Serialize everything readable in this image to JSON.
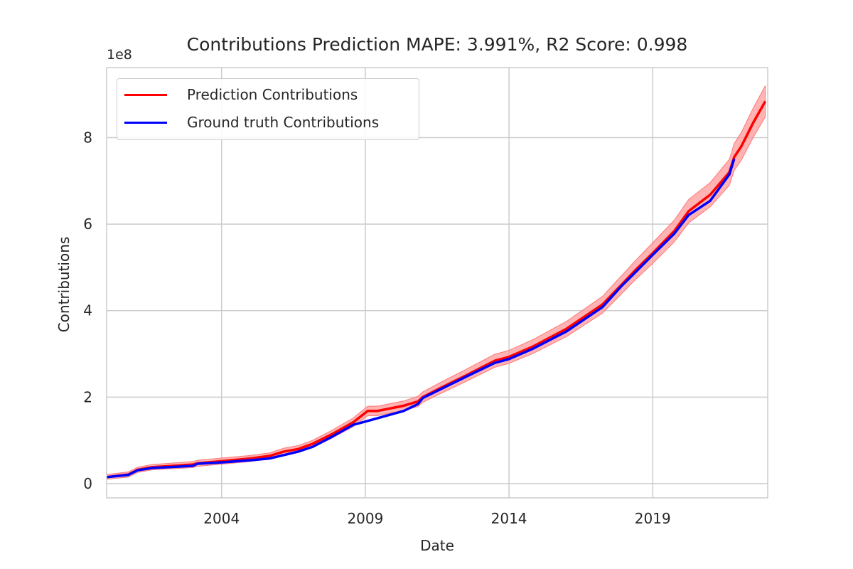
{
  "chart_data": {
    "type": "line",
    "title": "Contributions Prediction MAPE: 3.991%, R2 Score: 0.998",
    "xlabel": "Date",
    "ylabel": "Contributions",
    "y_offset_label": "1e8",
    "y_scale_factor": 100000000,
    "xlim": [
      "2000-01",
      "2023-01"
    ],
    "ylim": [
      -0.33,
      9.62
    ],
    "x_ticks": [
      "2004",
      "2009",
      "2014",
      "2019"
    ],
    "y_ticks": [
      "0",
      "2",
      "4",
      "6",
      "8"
    ],
    "grid": true,
    "legend_position": "upper-left",
    "colors": {
      "prediction": "#ff0000",
      "ground_truth": "#0000ff",
      "band": "#ff9999"
    },
    "dates": [
      "2000-01",
      "2000-10",
      "2001-02",
      "2001-08",
      "2003-01",
      "2003-03",
      "2004-01",
      "2005-01",
      "2005-09",
      "2006-03",
      "2006-09",
      "2007-03",
      "2007-11",
      "2008-08",
      "2009-02",
      "2009-06",
      "2010-05",
      "2010-11",
      "2011-01",
      "2011-08",
      "2012-07",
      "2013-07",
      "2014-01",
      "2014-11",
      "2016-01",
      "2017-04",
      "2017-12",
      "2018-06",
      "2019-01",
      "2019-10",
      "2020-04",
      "2021-01",
      "2021-09",
      "2021-11",
      "2022-02",
      "2022-07",
      "2022-12"
    ],
    "series": [
      {
        "name": "Prediction Contributions",
        "values": [
          0.15,
          0.21,
          0.32,
          0.38,
          0.44,
          0.47,
          0.52,
          0.58,
          0.64,
          0.74,
          0.8,
          0.92,
          1.14,
          1.42,
          1.68,
          1.68,
          1.8,
          1.9,
          2.0,
          2.2,
          2.5,
          2.84,
          2.93,
          3.17,
          3.58,
          4.14,
          4.6,
          4.95,
          5.33,
          5.84,
          6.3,
          6.68,
          7.2,
          7.55,
          7.8,
          8.35,
          8.84
        ]
      },
      {
        "name": "Ground truth Contributions",
        "values": [
          0.15,
          0.2,
          0.31,
          0.36,
          0.41,
          0.46,
          0.49,
          0.54,
          0.58,
          0.66,
          0.74,
          0.85,
          1.08,
          1.36,
          1.45,
          1.51,
          1.68,
          1.84,
          1.98,
          2.17,
          2.47,
          2.79,
          2.88,
          3.12,
          3.52,
          4.08,
          4.57,
          4.9,
          5.29,
          5.78,
          6.21,
          6.54,
          7.15,
          7.51,
          null,
          null,
          null
        ]
      }
    ],
    "band_lower": [
      0.1,
      0.15,
      0.26,
      0.32,
      0.37,
      0.4,
      0.45,
      0.51,
      0.57,
      0.66,
      0.72,
      0.84,
      1.05,
      1.32,
      1.57,
      1.57,
      1.69,
      1.78,
      1.88,
      2.07,
      2.36,
      2.69,
      2.78,
      3.01,
      3.4,
      3.94,
      4.39,
      4.73,
      5.09,
      5.59,
      6.03,
      6.4,
      6.9,
      7.24,
      7.48,
      8.01,
      8.48
    ],
    "band_upper": [
      0.21,
      0.27,
      0.38,
      0.44,
      0.51,
      0.54,
      0.59,
      0.65,
      0.71,
      0.82,
      0.88,
      1.0,
      1.23,
      1.52,
      1.79,
      1.79,
      1.91,
      2.02,
      2.12,
      2.33,
      2.64,
      2.99,
      3.08,
      3.33,
      3.75,
      4.33,
      4.81,
      5.17,
      5.57,
      6.09,
      6.57,
      6.96,
      7.5,
      7.86,
      8.12,
      8.69,
      9.2
    ]
  }
}
